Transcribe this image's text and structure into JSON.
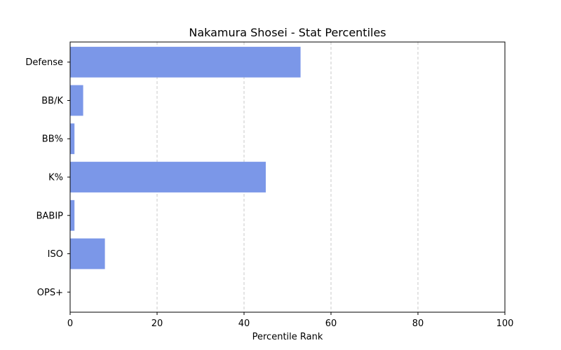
{
  "chart_data": {
    "type": "bar",
    "orientation": "horizontal",
    "title": "Nakamura Shosei - Stat Percentiles",
    "xlabel": "Percentile Rank",
    "ylabel": "",
    "categories": [
      "Defense",
      "BB/K",
      "BB%",
      "K%",
      "BABIP",
      "ISO",
      "OPS+"
    ],
    "values": [
      53,
      3,
      1,
      45,
      1,
      8,
      0
    ],
    "xlim": [
      0,
      100
    ],
    "xticks": [
      0,
      20,
      40,
      60,
      80,
      100
    ],
    "grid": "x-dashed",
    "bar_color": "#7b97e8"
  }
}
